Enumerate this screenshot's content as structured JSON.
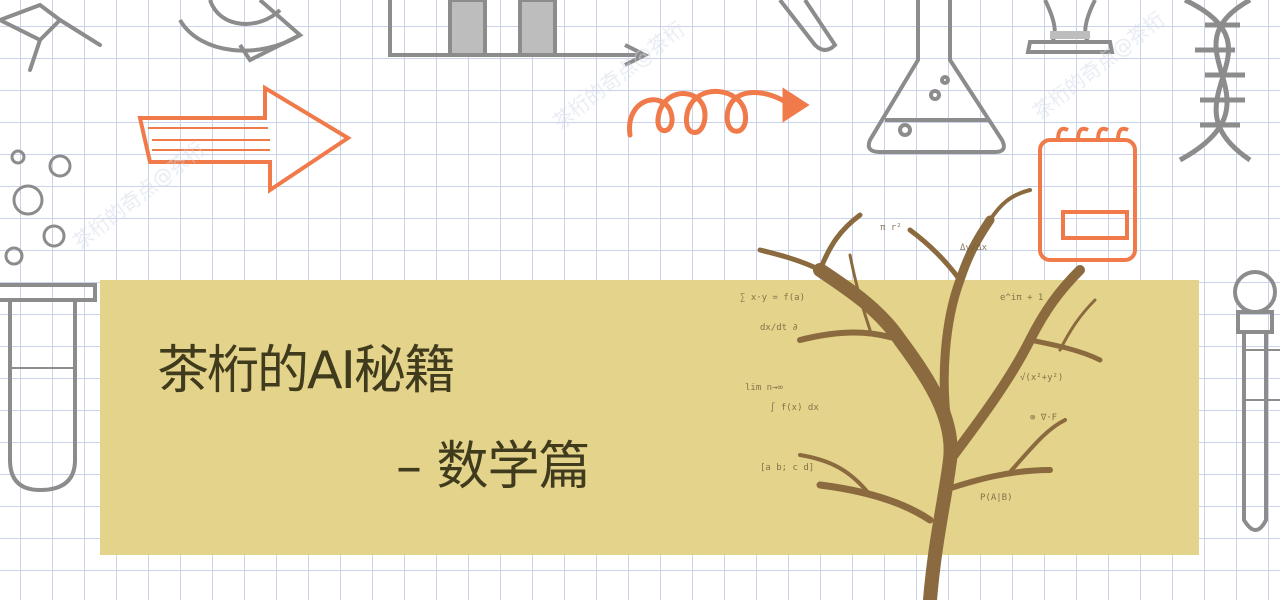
{
  "slide": {
    "title": "茶桁的AI秘籍",
    "subtitle": "– 数学篇"
  },
  "colors": {
    "banner": "#e4d38b",
    "title_text": "#3f3b1c",
    "doodle_gray": "#8c8c8c",
    "doodle_orange": "#f07a4a",
    "tree_brown": "#8a6a3e"
  },
  "decorations": {
    "watermark_text": "茶桁的奇点@茶桁",
    "doodle_icons": [
      "molecule-icon",
      "recycle-arrows-icon",
      "bar-chart-icon",
      "test-tube-icon",
      "hourglass-icon",
      "dna-helix-icon",
      "arrow-right-icon",
      "spiral-arrow-icon",
      "flask-icon",
      "notepad-icon",
      "bubbles-icon",
      "dropper-icon",
      "tree-of-formulas-illustration"
    ]
  }
}
